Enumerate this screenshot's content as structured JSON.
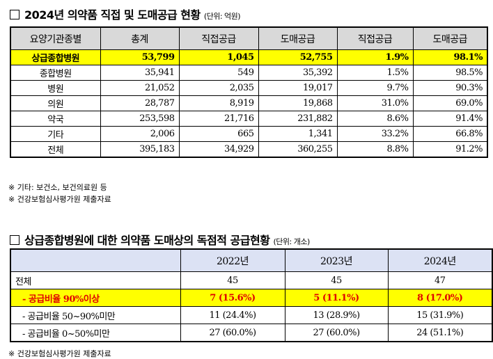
{
  "section1": {
    "title": "2024년 의약품 직접 및 도매공급 현황",
    "unit": "(단위: 억원)",
    "headers": [
      "요양기관종별",
      "총계",
      "직접공급",
      "도매공급",
      "직접공급",
      "도매공급"
    ],
    "rows": [
      [
        "상급종합병원",
        "53,799",
        "1,045",
        "52,755",
        "1.9%",
        "98.1%"
      ],
      [
        "종합병원",
        "35,941",
        "549",
        "35,392",
        "1.5%",
        "98.5%"
      ],
      [
        "병원",
        "21,052",
        "2,035",
        "19,017",
        "9.7%",
        "90.3%"
      ],
      [
        "의원",
        "28,787",
        "8,919",
        "19,868",
        "31.0%",
        "69.0%"
      ],
      [
        "약국",
        "253,598",
        "21,716",
        "231,882",
        "8.6%",
        "91.4%"
      ],
      [
        "기타",
        "2,006",
        "665",
        "1,341",
        "33.2%",
        "66.8%"
      ],
      [
        "전체",
        "395,183",
        "34,929",
        "360,255",
        "8.8%",
        "91.2%"
      ]
    ],
    "notes": [
      "※ 기타: 보건소, 보건의료원 등",
      "※ 건강보험심사평가원 제출자료"
    ]
  },
  "section2": {
    "title": "상급종합병원에 대한 의약품 도매상의 독점적 공급현황",
    "unit": "(단위: 개소)",
    "headers": [
      "",
      "2022년",
      "2023년",
      "2024년"
    ],
    "rows": [
      [
        "전체",
        "45",
        "45",
        "47"
      ],
      [
        "- 공급비율 90%이상",
        "7 (15.6%)",
        "5 (11.1%)",
        "8 (17.0%)"
      ],
      [
        "- 공급비율 50~90%미만",
        "11 (24.4%)",
        "13 (28.9%)",
        "15 (31.9%)"
      ],
      [
        "- 공급비율 0~50%미만",
        "27 (60.0%)",
        "27 (60.0%)",
        "24 (51.1%)"
      ]
    ],
    "notes": [
      "※ 건강보험심사평가원 제출자료"
    ]
  },
  "colors": {
    "highlight": "#ffff00",
    "highlight_text2": "#e00000",
    "header1": "#d9d9d9",
    "header2": "#dce2f4"
  }
}
